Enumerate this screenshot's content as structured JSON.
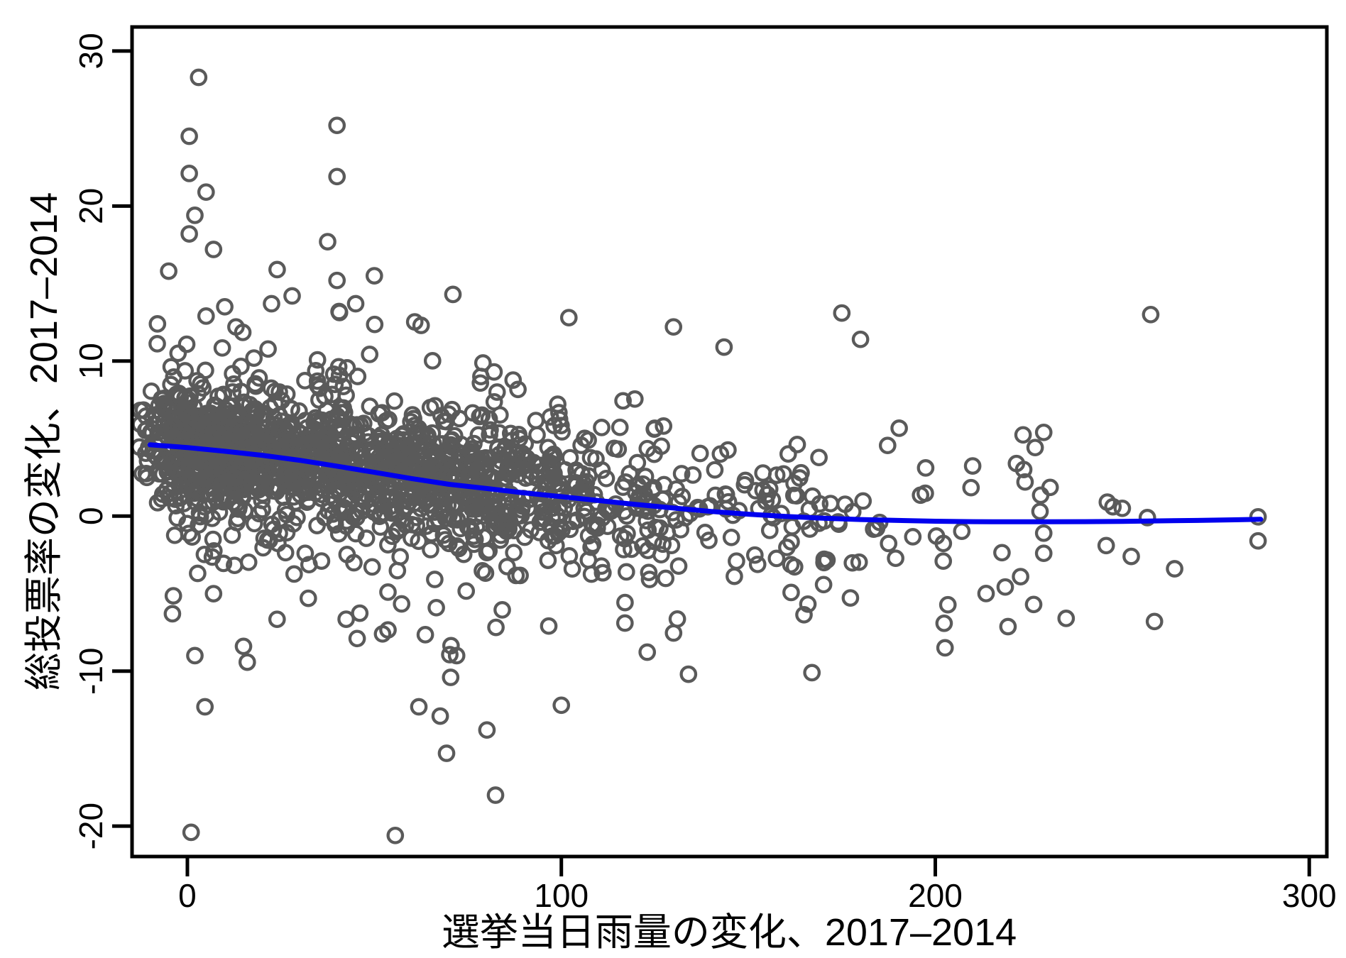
{
  "chart_data": {
    "type": "scatter",
    "title": "",
    "xlabel": "選挙当日雨量の変化、2017–2014",
    "ylabel": "総投票率の変化、2017–2014",
    "xlim": [
      -14.8,
      304.7
    ],
    "ylim": [
      -21.96,
      31.55
    ],
    "grid": false,
    "legend": null,
    "axis_color": "#000000",
    "background": "#ffffff",
    "x_ticks": [
      {
        "value": 0,
        "label": "0"
      },
      {
        "value": 100,
        "label": "100"
      },
      {
        "value": 200,
        "label": "200"
      },
      {
        "value": 300,
        "label": "300"
      }
    ],
    "y_ticks": [
      {
        "value": -20,
        "label": "-20"
      },
      {
        "value": -10,
        "label": "-10"
      },
      {
        "value": 0,
        "label": "0"
      },
      {
        "value": 10,
        "label": "10"
      },
      {
        "value": 20,
        "label": "20"
      },
      {
        "value": 30,
        "label": "30"
      }
    ],
    "marker": {
      "shape": "circle-hollow",
      "radius": 10.2,
      "stroke_width": 4.3,
      "color": "#5a5a5a"
    },
    "lowess_line": {
      "color": "#0000ee",
      "width": 7,
      "points": [
        [
          -10,
          4.6
        ],
        [
          0,
          4.42
        ],
        [
          10,
          4.18
        ],
        [
          20,
          3.92
        ],
        [
          30,
          3.6
        ],
        [
          40,
          3.22
        ],
        [
          50,
          2.82
        ],
        [
          60,
          2.42
        ],
        [
          70,
          2.05
        ],
        [
          80,
          1.78
        ],
        [
          90,
          1.5
        ],
        [
          100,
          1.25
        ],
        [
          110,
          1.0
        ],
        [
          120,
          0.75
        ],
        [
          130,
          0.52
        ],
        [
          140,
          0.3
        ],
        [
          150,
          0.12
        ],
        [
          160,
          -0.02
        ],
        [
          170,
          -0.14
        ],
        [
          180,
          -0.22
        ],
        [
          190,
          -0.28
        ],
        [
          200,
          -0.33
        ],
        [
          210,
          -0.36
        ],
        [
          220,
          -0.37
        ],
        [
          230,
          -0.37
        ],
        [
          240,
          -0.36
        ],
        [
          250,
          -0.34
        ],
        [
          260,
          -0.31
        ],
        [
          270,
          -0.28
        ],
        [
          280,
          -0.24
        ],
        [
          287,
          -0.21
        ]
      ]
    },
    "scatter": {
      "points_estimate": 1713,
      "seed": 20171022,
      "clusters": [
        {
          "n": 1250,
          "x": {
            "dist": "beta",
            "a": 1.6,
            "b": 2.2,
            "min": -12,
            "max": 135
          },
          "noise": [
            {
              "w": 0.7,
              "sd": 1.9
            },
            {
              "w": 0.22,
              "sd": 3.4
            },
            {
              "w": 0.08,
              "sd": 6.0
            }
          ],
          "y_clip": [
            -9.5,
            13.2
          ]
        },
        {
          "n": 260,
          "x": {
            "dist": "normal",
            "mean": 5,
            "sd": 9,
            "min": -13,
            "max": 30
          },
          "noise": [
            {
              "w": 0.7,
              "sd": 1.9
            },
            {
              "w": 0.22,
              "sd": 3.4
            },
            {
              "w": 0.08,
              "sd": 6.0
            }
          ],
          "y_clip": [
            -9.5,
            12.8
          ]
        },
        {
          "n": 135,
          "x": {
            "dist": "beta",
            "a": 1.0,
            "b": 1.55,
            "min": 120,
            "max": 232
          },
          "noise": [
            {
              "w": 0.65,
              "sd": 2.0
            },
            {
              "w": 0.27,
              "sd": 3.5
            },
            {
              "w": 0.08,
              "sd": 5.2
            }
          ],
          "y_clip": [
            -7.8,
            6.8
          ]
        }
      ],
      "outlier_points": [
        [
          3,
          28.3
        ],
        [
          0.5,
          24.5
        ],
        [
          0.5,
          22.1
        ],
        [
          5,
          20.9
        ],
        [
          2,
          19.4
        ],
        [
          0.5,
          18.2
        ],
        [
          7,
          17.2
        ],
        [
          -5,
          15.8
        ],
        [
          24,
          15.9
        ],
        [
          22.5,
          13.7
        ],
        [
          10,
          13.5
        ],
        [
          5,
          12.9
        ],
        [
          -8,
          12.4
        ],
        [
          13,
          12.2
        ],
        [
          28,
          14.2
        ],
        [
          40,
          25.2
        ],
        [
          40,
          21.9
        ],
        [
          37.5,
          17.7
        ],
        [
          40,
          15.2
        ],
        [
          50,
          15.5
        ],
        [
          45,
          13.7
        ],
        [
          62.5,
          12.3
        ],
        [
          71,
          14.3
        ],
        [
          82,
          9.3
        ],
        [
          102,
          12.8
        ],
        [
          130,
          12.2
        ],
        [
          143.5,
          10.9
        ],
        [
          175,
          13.1
        ],
        [
          180,
          11.4
        ],
        [
          257.6,
          13.0
        ],
        [
          1,
          -20.4
        ],
        [
          55.6,
          -20.6
        ],
        [
          82.4,
          -18.0
        ],
        [
          69.3,
          -15.3
        ],
        [
          80.1,
          -13.8
        ],
        [
          67.6,
          -12.9
        ],
        [
          61.9,
          -12.3
        ],
        [
          100,
          -12.2
        ],
        [
          4.7,
          -12.3
        ],
        [
          2,
          -9.0
        ],
        [
          15,
          -8.4
        ],
        [
          70.4,
          -10.4
        ],
        [
          72,
          -9.0
        ],
        [
          45.4,
          -7.9
        ],
        [
          52.2,
          -7.6
        ],
        [
          -4,
          -6.3
        ],
        [
          134,
          -10.2
        ],
        [
          167,
          -10.1
        ],
        [
          117,
          -6.9
        ],
        [
          202.6,
          -8.5
        ],
        [
          224,
          2.2
        ],
        [
          229,
          5.4
        ],
        [
          230.7,
          1.85
        ],
        [
          228,
          0.3
        ],
        [
          229,
          -1.1
        ],
        [
          229,
          -2.4
        ],
        [
          246,
          0.9
        ],
        [
          247.5,
          0.6
        ],
        [
          250,
          0.5
        ],
        [
          256.7,
          -0.1
        ],
        [
          245.7,
          -1.9
        ],
        [
          252.4,
          -2.6
        ],
        [
          264,
          -3.4
        ],
        [
          286.3,
          -0.05
        ],
        [
          286.3,
          -1.6
        ],
        [
          226.3,
          -5.7
        ],
        [
          235,
          -6.6
        ],
        [
          258.6,
          -6.8
        ]
      ]
    }
  }
}
